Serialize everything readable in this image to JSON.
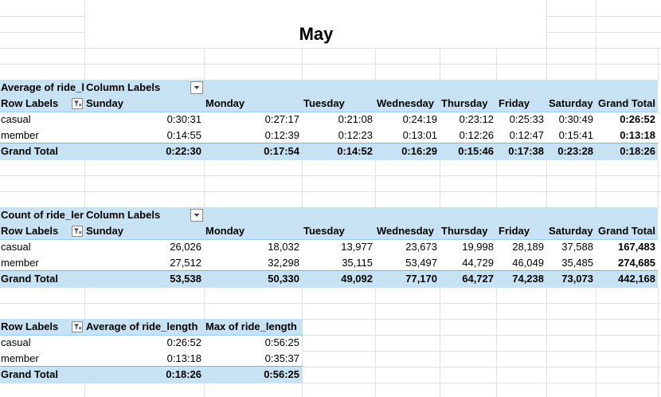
{
  "sheet": {
    "title": "May"
  },
  "pivot1": {
    "corner": "Average of ride_l",
    "column_labels": "Column Labels",
    "row_labels": "Row Labels",
    "headers": [
      "Sunday",
      "Monday",
      "Tuesday",
      "Wednesday",
      "Thursday",
      "Friday",
      "Saturday",
      "Grand Total"
    ],
    "rows": [
      {
        "label": "casual",
        "values": [
          "0:30:31",
          "0:27:17",
          "0:21:08",
          "0:24:19",
          "0:23:12",
          "0:25:33",
          "0:30:49",
          "0:26:52"
        ]
      },
      {
        "label": "member",
        "values": [
          "0:14:55",
          "0:12:39",
          "0:12:23",
          "0:13:01",
          "0:12:26",
          "0:12:47",
          "0:15:41",
          "0:13:18"
        ]
      }
    ],
    "total": {
      "label": "Grand Total",
      "values": [
        "0:22:30",
        "0:17:54",
        "0:14:52",
        "0:16:29",
        "0:15:46",
        "0:17:38",
        "0:23:28",
        "0:18:26"
      ]
    }
  },
  "pivot2": {
    "corner": "Count of ride_ler",
    "column_labels": "Column Labels",
    "row_labels": "Row Labels",
    "headers": [
      "Sunday",
      "Monday",
      "Tuesday",
      "Wednesday",
      "Thursday",
      "Friday",
      "Saturday",
      "Grand Total"
    ],
    "rows": [
      {
        "label": "casual",
        "values": [
          "26,026",
          "18,032",
          "13,977",
          "23,673",
          "19,998",
          "28,189",
          "37,588",
          "167,483"
        ]
      },
      {
        "label": "member",
        "values": [
          "27,512",
          "32,298",
          "35,115",
          "53,497",
          "44,729",
          "46,049",
          "35,485",
          "274,685"
        ]
      }
    ],
    "total": {
      "label": "Grand Total",
      "values": [
        "53,538",
        "50,330",
        "49,092",
        "77,170",
        "64,727",
        "74,238",
        "73,073",
        "442,168"
      ]
    }
  },
  "pivot3": {
    "row_labels": "Row Labels",
    "headers": [
      "Average of ride_length",
      "Max of ride_length"
    ],
    "rows": [
      {
        "label": "casual",
        "values": [
          "0:26:52",
          "0:56:25"
        ]
      },
      {
        "label": "member",
        "values": [
          "0:13:18",
          "0:35:37"
        ]
      }
    ],
    "total": {
      "label": "Grand Total",
      "values": [
        "0:18:26",
        "0:56:25"
      ]
    }
  },
  "icons": {
    "filter": "filter-icon",
    "dropdown": "dropdown-arrow-icon"
  },
  "colors": {
    "band": "#c7e3f3",
    "gridline": "#e1e1e1"
  }
}
